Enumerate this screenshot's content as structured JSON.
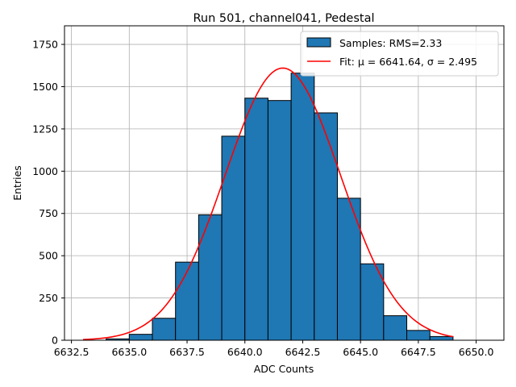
{
  "chart_data": {
    "type": "histogram",
    "title": "Run 501, channel041, Pedestal",
    "xlabel": "ADC Counts",
    "ylabel": "Entries",
    "xlim": [
      6632.2,
      6651.2
    ],
    "ylim": [
      0,
      1860
    ],
    "x_ticks": [
      {
        "value": 6632.5,
        "label": "6632.5"
      },
      {
        "value": 6635.0,
        "label": "6635.0"
      },
      {
        "value": 6637.5,
        "label": "6637.5"
      },
      {
        "value": 6640.0,
        "label": "6640.0"
      },
      {
        "value": 6642.5,
        "label": "6642.5"
      },
      {
        "value": 6645.0,
        "label": "6645.0"
      },
      {
        "value": 6647.5,
        "label": "6647.5"
      },
      {
        "value": 6650.0,
        "label": "6650.0"
      }
    ],
    "y_ticks": [
      {
        "value": 0,
        "label": "0"
      },
      {
        "value": 250,
        "label": "250"
      },
      {
        "value": 500,
        "label": "500"
      },
      {
        "value": 750,
        "label": "750"
      },
      {
        "value": 1000,
        "label": "1000"
      },
      {
        "value": 1250,
        "label": "1250"
      },
      {
        "value": 1500,
        "label": "1500"
      },
      {
        "value": 1750,
        "label": "1750"
      }
    ],
    "grid": true,
    "bin_edges": [
      6633,
      6634,
      6635,
      6636,
      6637,
      6638,
      6639,
      6640,
      6641,
      6642,
      6643,
      6644,
      6645,
      6646,
      6647,
      6648,
      6649,
      6650,
      6651
    ],
    "counts": [
      0,
      8,
      35,
      130,
      462,
      742,
      1207,
      1432,
      1418,
      1580,
      1345,
      840,
      452,
      145,
      58,
      22,
      0,
      0
    ],
    "bar_color": "#1f77b4",
    "bar_edge_color": "#000000",
    "fit": {
      "mu": 6641.64,
      "sigma": 2.495,
      "amplitude": 1610,
      "x_range": [
        6633,
        6649
      ],
      "color": "#ff0000"
    },
    "legend": {
      "position": "top-right",
      "entries": [
        {
          "label": "Samples: RMS=2.33",
          "type": "patch"
        },
        {
          "label": "Fit: μ = 6641.64, σ = 2.495",
          "type": "line"
        }
      ]
    }
  }
}
